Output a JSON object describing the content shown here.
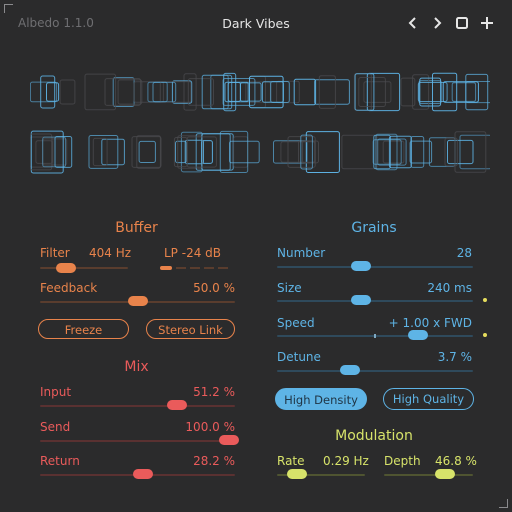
{
  "app": {
    "name": "Albedo 1.1.0",
    "preset": "Dark Vibes"
  },
  "colors": {
    "background": "#2b2b2c",
    "buffer": "#e8834b",
    "mix": "#ea5b5b",
    "grains": "#5eb4e6",
    "modulation": "#d7e36a",
    "text": "#e6e6e6",
    "muted": "#6f6f72"
  },
  "buffer": {
    "title": "Buffer",
    "filter": {
      "label": "Filter",
      "value": "404 Hz",
      "level": 0.3,
      "mode": "LP -24 dB",
      "mode_level": 0.22
    },
    "feedback": {
      "label": "Feedback",
      "value": "50.0 %",
      "level": 0.5
    },
    "freeze_label": "Freeze",
    "stereo_link_label": "Stereo Link"
  },
  "mix": {
    "title": "Mix",
    "input": {
      "label": "Input",
      "value": "51.2 %",
      "level": 0.7
    },
    "send": {
      "label": "Send",
      "value": "100.0 %",
      "level": 0.97
    },
    "return": {
      "label": "Return",
      "value": "28.2 %",
      "level": 0.53
    }
  },
  "grains": {
    "title": "Grains",
    "number": {
      "label": "Number",
      "value": "28",
      "level": 0.43
    },
    "size": {
      "label": "Size",
      "value": "240 ms",
      "level": 0.43
    },
    "speed": {
      "label": "Speed",
      "value": "+ 1.00 x FWD",
      "level": 0.72
    },
    "detune": {
      "label": "Detune",
      "value": "3.7 %",
      "level": 0.37
    },
    "high_density_label": "High Density",
    "high_quality_label": "High Quality"
  },
  "modulation": {
    "title": "Modulation",
    "rate": {
      "label": "Rate",
      "value": "0.29 Hz",
      "level": 0.23
    },
    "depth": {
      "label": "Depth",
      "value": "46.8 %",
      "level": 0.68
    }
  },
  "icons": {
    "prev": "chevron-left-icon",
    "next": "chevron-right-icon",
    "window": "window-icon",
    "add": "plus-icon"
  }
}
